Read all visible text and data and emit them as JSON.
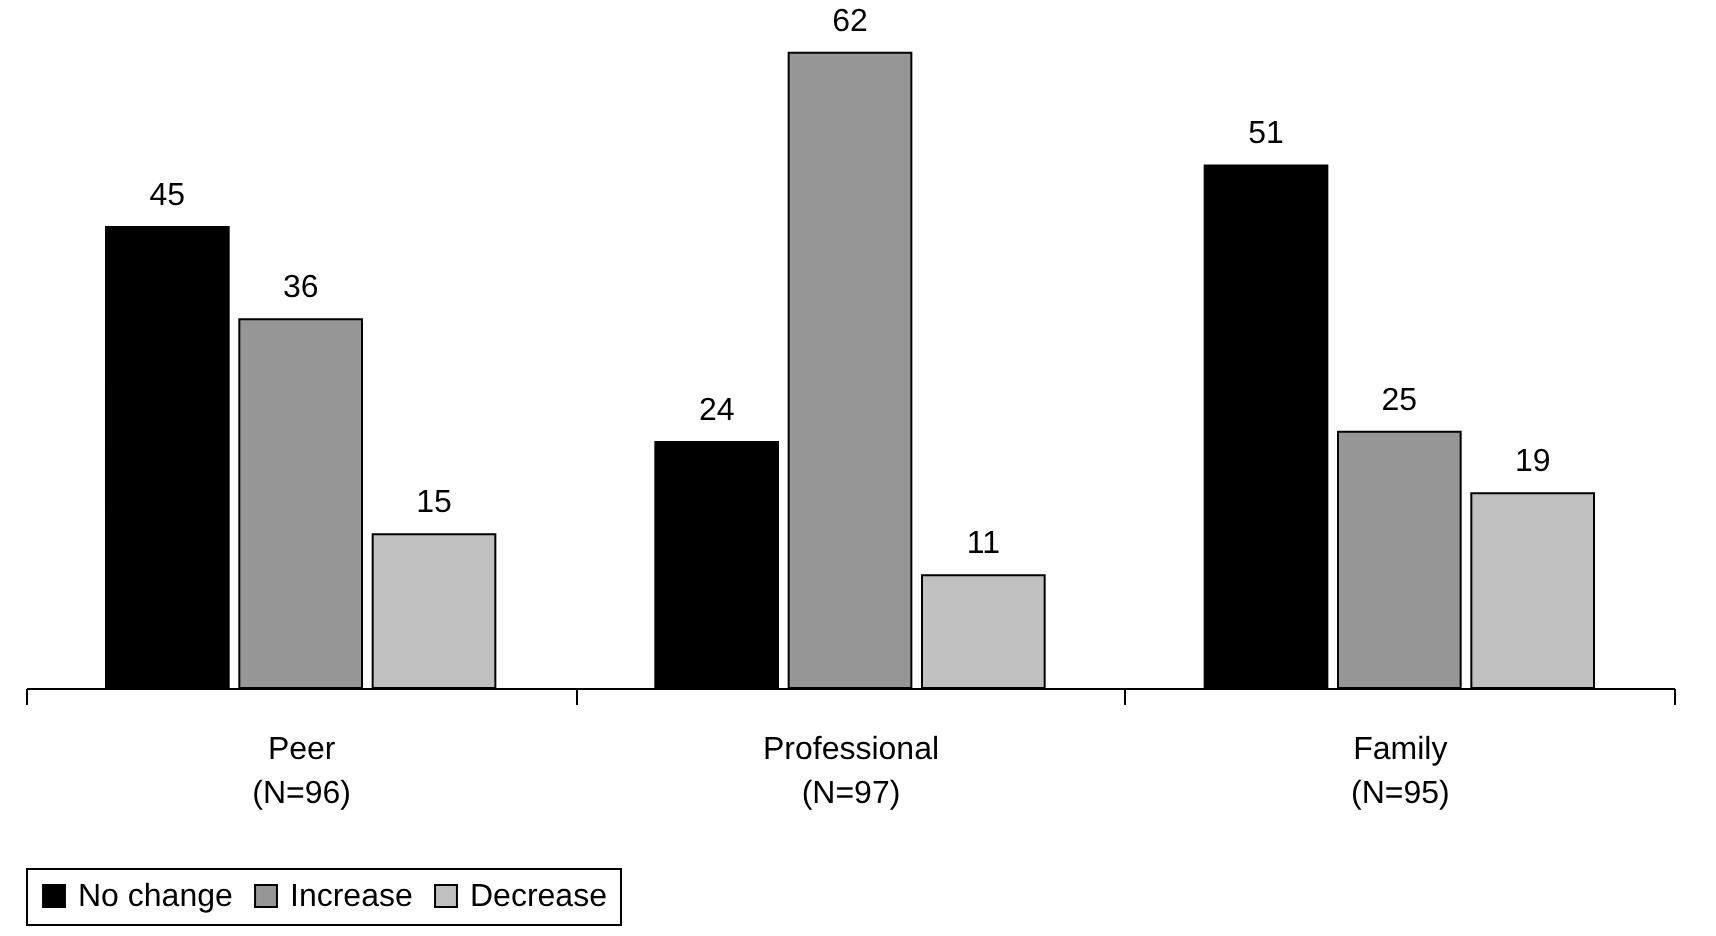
{
  "chart_data": {
    "type": "bar",
    "categories": [
      "Peer\n(N=96)",
      "Professional\n(N=97)",
      "Family\n(N=95)"
    ],
    "series": [
      {
        "name": "No change",
        "color": "#000000",
        "values": [
          45,
          24,
          51
        ]
      },
      {
        "name": "Increase",
        "color": "#969696",
        "values": [
          36,
          62,
          25
        ]
      },
      {
        "name": "Decrease",
        "color": "#c0c0c0",
        "values": [
          15,
          11,
          19
        ]
      }
    ],
    "data_labels": true,
    "legend": "bottom"
  }
}
